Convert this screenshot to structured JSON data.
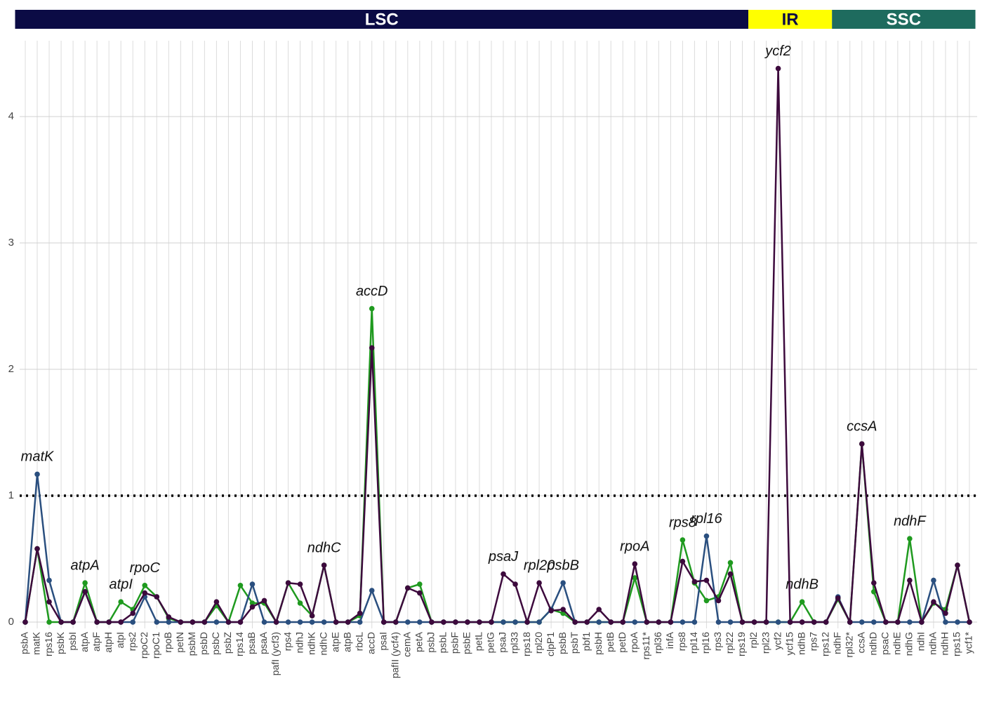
{
  "chart_data": {
    "type": "line",
    "categories": [
      "psbA",
      "matK",
      "rps16",
      "psbK",
      "psbI",
      "atpA",
      "atpF",
      "atpH",
      "atpI",
      "rps2",
      "rpoC2",
      "rpoC1",
      "rpoB",
      "petN",
      "psbM",
      "psbD",
      "psbC",
      "psbZ",
      "rps14",
      "psaB",
      "psaA",
      "pafI (ycf3)",
      "rps4",
      "ndhJ",
      "ndhK",
      "ndhC",
      "atpE",
      "atpB",
      "rbcL",
      "accD",
      "psaI",
      "pafII (ycf4)",
      "cemA",
      "petA",
      "psbJ",
      "psbL",
      "psbF",
      "psbE",
      "petL",
      "petG",
      "psaJ",
      "rpl33",
      "rps18",
      "rpl20",
      "clpP1",
      "psbB",
      "psbT",
      "pbf1",
      "psbH",
      "petB",
      "petD",
      "rpoA",
      "rps11*",
      "rpl36",
      "infA",
      "rps8",
      "rpl14",
      "rpl16",
      "rps3",
      "rpl22",
      "rps19",
      "rpl2",
      "rpl23",
      "ycf2",
      "ycf15",
      "ndhB",
      "rps7",
      "rps12",
      "ndhF",
      "rpl32*",
      "ccsA",
      "ndhD",
      "psaC",
      "ndhE",
      "ndhG",
      "ndhI",
      "ndhA",
      "ndhH",
      "rps15",
      "ycf1*"
    ],
    "series": [
      {
        "color": "#1f9a1f",
        "values": [
          0,
          0.58,
          0,
          0,
          0,
          0.31,
          0,
          0,
          0.16,
          0.1,
          0.29,
          0.2,
          0.03,
          0,
          0,
          0,
          0.13,
          0,
          0.29,
          0.15,
          0.15,
          0,
          0.31,
          0.15,
          0.05,
          0.45,
          0,
          0,
          0.05,
          2.48,
          0,
          0,
          0.27,
          0.3,
          0,
          0,
          0,
          0,
          0,
          0,
          0,
          0,
          0,
          0,
          0.1,
          0.07,
          0,
          0,
          0,
          0,
          0,
          0.35,
          0,
          0,
          0,
          0.65,
          0.31,
          0.17,
          0.2,
          0.47,
          0,
          0,
          0,
          0,
          0,
          0.16,
          0,
          0,
          0.18,
          0,
          1.41,
          0.24,
          0,
          0,
          0.66,
          0,
          0.15,
          0.1,
          0.45,
          0
        ]
      },
      {
        "color": "#2a4f7f",
        "values": [
          0,
          1.17,
          0.33,
          0,
          0,
          0.24,
          0,
          0,
          0,
          0,
          0.2,
          0,
          0,
          0,
          0,
          0,
          0,
          0,
          0,
          0.3,
          0,
          0,
          0,
          0,
          0,
          0,
          0,
          0,
          0,
          0.25,
          0,
          0,
          0,
          0,
          0,
          0,
          0,
          0,
          0,
          0,
          0,
          0,
          0,
          0,
          0.1,
          0.31,
          0,
          0,
          0,
          0,
          0,
          0,
          0,
          0,
          0,
          0,
          0,
          0.68,
          0,
          0,
          0,
          0,
          0,
          0,
          0,
          0,
          0,
          0,
          0.2,
          0,
          0,
          0,
          0,
          0,
          0,
          0,
          0.33,
          0,
          0,
          0
        ]
      },
      {
        "color": "#3d0a3d",
        "values": [
          0,
          0.58,
          0.16,
          0,
          0,
          0.24,
          0,
          0,
          0,
          0.07,
          0.23,
          0.2,
          0.04,
          0,
          0,
          0,
          0.16,
          0,
          0,
          0.12,
          0.17,
          0,
          0.31,
          0.3,
          0.05,
          0.45,
          0,
          0,
          0.07,
          2.17,
          0,
          0,
          0.27,
          0.23,
          0,
          0,
          0,
          0,
          0,
          0,
          0.38,
          0.3,
          0,
          0.31,
          0.09,
          0.1,
          0,
          0,
          0.1,
          0,
          0,
          0.46,
          0,
          0,
          0,
          0.48,
          0.32,
          0.33,
          0.17,
          0.38,
          0,
          0,
          0,
          4.38,
          0,
          0,
          0,
          0,
          0.19,
          0,
          1.41,
          0.31,
          0,
          0,
          0.33,
          0,
          0.16,
          0.07,
          0.45,
          0
        ]
      }
    ],
    "ylim": [
      -0.05,
      4.6
    ],
    "yticks": [
      0,
      1,
      2,
      3,
      4
    ],
    "grid": true,
    "reference_line": {
      "value": 1,
      "style": "dotted"
    },
    "annotations": [
      {
        "text": "matK",
        "at": "matK"
      },
      {
        "text": "atpA",
        "at": "atpA"
      },
      {
        "text": "atpI",
        "at": "atpI"
      },
      {
        "text": "rpoC",
        "at": "rpoC2"
      },
      {
        "text": "ndhC",
        "at": "ndhC"
      },
      {
        "text": "accD",
        "at": "accD"
      },
      {
        "text": "psaJ",
        "at": "psaJ"
      },
      {
        "text": "rpl20",
        "at": "rpl20"
      },
      {
        "text": "psbB",
        "at": "psbB"
      },
      {
        "text": "rpoA",
        "at": "rpoA"
      },
      {
        "text": "rps8",
        "at": "rps8"
      },
      {
        "text": "rpl16",
        "at": "rpl16"
      },
      {
        "text": "ycf2",
        "at": "ycf2"
      },
      {
        "text": "ndhB",
        "at": "ndhB"
      },
      {
        "text": "ccsA",
        "at": "ccsA"
      },
      {
        "text": "ndhF",
        "at": "ndhG"
      }
    ],
    "regions": [
      {
        "label": "LSC",
        "from": "psbA",
        "to": "rps19",
        "color": "#0b0b45",
        "text_color": "#ffffff"
      },
      {
        "label": "IR",
        "from": "rpl2",
        "to": "rps12",
        "color": "#ffff00",
        "text_color": "#0b0b45"
      },
      {
        "label": "SSC",
        "from": "ndhF",
        "to": "ycf1*",
        "color": "#1e6b5e",
        "text_color": "#ffffff"
      }
    ]
  }
}
